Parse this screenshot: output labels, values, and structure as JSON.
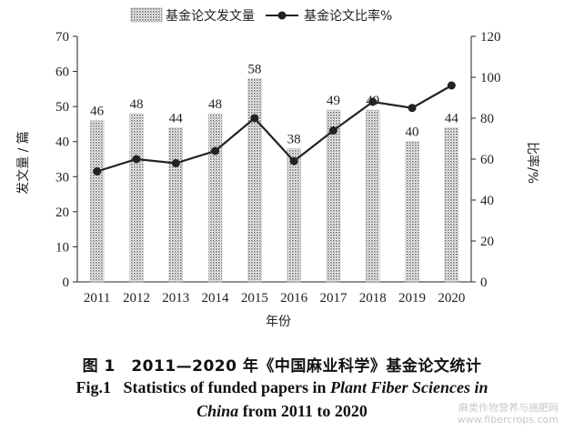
{
  "chart_data": {
    "type": "bar+line",
    "categories": [
      "2011",
      "2012",
      "2013",
      "2014",
      "2015",
      "2016",
      "2017",
      "2018",
      "2019",
      "2020"
    ],
    "series": [
      {
        "name": "基金论文发文量",
        "type": "bar",
        "axis": "left",
        "values": [
          46,
          48,
          44,
          48,
          58,
          38,
          49,
          49,
          40,
          44
        ]
      },
      {
        "name": "基金论文比率%",
        "type": "line",
        "axis": "right",
        "values": [
          54,
          60,
          58,
          64,
          80,
          59,
          74,
          88,
          85,
          96
        ]
      }
    ],
    "xlabel": "年份",
    "ylabel_left": "发文量 / 篇",
    "ylabel_right": "比率/%",
    "ylim_left": [
      0,
      70
    ],
    "ylim_right": [
      0,
      120
    ],
    "yticks_left": [
      "0",
      "10",
      "20",
      "30",
      "40",
      "50",
      "60",
      "70"
    ],
    "yticks_right": [
      "0",
      "20",
      "40",
      "60",
      "80",
      "100",
      "120"
    ],
    "legend_position": "top",
    "grid": false,
    "bar_pattern": "dotted",
    "line_color": "#222222"
  },
  "caption": {
    "cn": "图 1　2011—2020 年《中国麻业科学》基金论文统计",
    "en_line1_prefix": "Fig.1   Statistics of funded papers in ",
    "en_line1_italic": "Plant Fiber Sciences in",
    "en_line2_italic": "China",
    "en_line2_suffix": " from 2011 to 2020"
  },
  "watermark": {
    "line1": "麻类作物营养与施肥网",
    "line2": "www.fibercrops.com"
  }
}
